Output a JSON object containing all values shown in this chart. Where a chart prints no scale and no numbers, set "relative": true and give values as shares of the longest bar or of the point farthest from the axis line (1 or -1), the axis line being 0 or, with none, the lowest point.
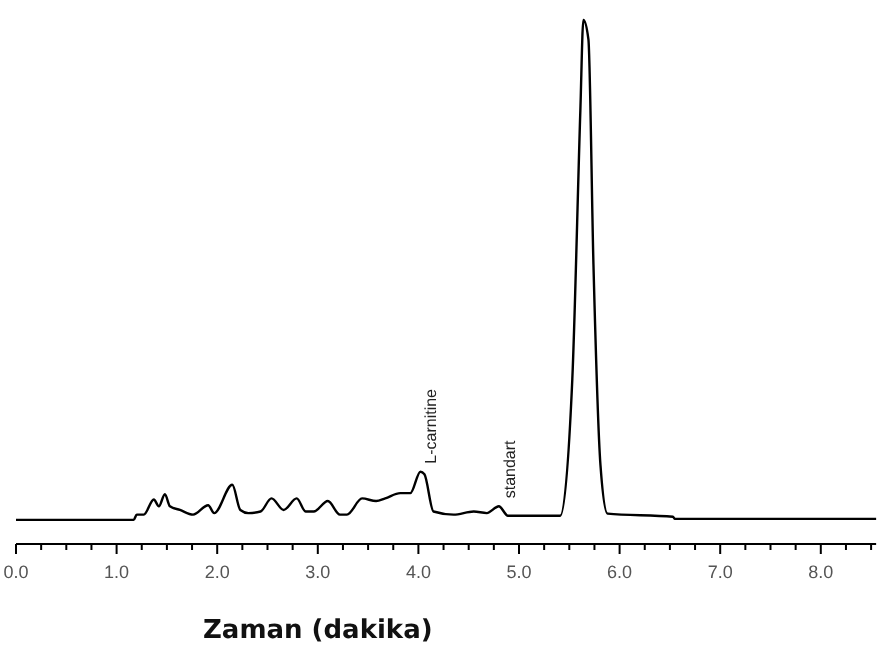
{
  "chart_data": {
    "type": "line",
    "relative": true,
    "xlabel": "Zaman (dakika)",
    "xlim": [
      0,
      8.55
    ],
    "xticks": [
      {
        "value": 0,
        "label": "0.0"
      },
      {
        "value": 0.25,
        "label": null
      },
      {
        "value": 0.5,
        "label": null
      },
      {
        "value": 0.75,
        "label": null
      },
      {
        "value": 1,
        "label": "1.0"
      },
      {
        "value": 1.25,
        "label": null
      },
      {
        "value": 1.5,
        "label": null
      },
      {
        "value": 1.75,
        "label": null
      },
      {
        "value": 2,
        "label": "2.0"
      },
      {
        "value": 2.25,
        "label": null
      },
      {
        "value": 2.5,
        "label": null
      },
      {
        "value": 2.75,
        "label": null
      },
      {
        "value": 3,
        "label": "3.0"
      },
      {
        "value": 3.25,
        "label": null
      },
      {
        "value": 3.5,
        "label": null
      },
      {
        "value": 3.75,
        "label": null
      },
      {
        "value": 4,
        "label": "4.0"
      },
      {
        "value": 4.25,
        "label": null
      },
      {
        "value": 4.5,
        "label": null
      },
      {
        "value": 4.75,
        "label": null
      },
      {
        "value": 5,
        "label": "5.0"
      },
      {
        "value": 5.25,
        "label": null
      },
      {
        "value": 5.5,
        "label": null
      },
      {
        "value": 5.75,
        "label": null
      },
      {
        "value": 6,
        "label": "6.0"
      },
      {
        "value": 6.25,
        "label": null
      },
      {
        "value": 6.5,
        "label": null
      },
      {
        "value": 6.75,
        "label": null
      },
      {
        "value": 7,
        "label": "7.0"
      },
      {
        "value": 7.25,
        "label": null
      },
      {
        "value": 7.5,
        "label": null
      },
      {
        "value": 7.75,
        "label": null
      },
      {
        "value": 8,
        "label": "8.0"
      },
      {
        "value": 8.25,
        "label": null
      },
      {
        "value": 8.5,
        "label": null
      }
    ],
    "x": [
      0,
      1.17,
      1.2,
      1.27,
      1.37,
      1.42,
      1.48,
      1.53,
      1.63,
      1.76,
      1.91,
      1.97,
      2.15,
      2.23,
      2.31,
      2.43,
      2.54,
      2.66,
      2.79,
      2.88,
      2.96,
      3.1,
      3.22,
      3.29,
      3.44,
      3.58,
      3.67,
      3.82,
      3.92,
      4.02,
      4.06,
      4.15,
      4.35,
      4.55,
      4.68,
      4.8,
      4.89,
      5.41,
      5.53,
      5.61,
      5.64,
      5.69,
      5.74,
      5.81,
      5.88,
      6.53,
      6.55,
      8.55
    ],
    "series": [
      {
        "color": "#000000",
        "values": [
          0.046,
          0.046,
          0.056,
          0.056,
          0.085,
          0.072,
          0.095,
          0.072,
          0.065,
          0.056,
          0.074,
          0.059,
          0.113,
          0.065,
          0.059,
          0.062,
          0.087,
          0.065,
          0.087,
          0.062,
          0.062,
          0.082,
          0.056,
          0.056,
          0.087,
          0.082,
          0.087,
          0.097,
          0.097,
          0.138,
          0.133,
          0.062,
          0.056,
          0.062,
          0.059,
          0.072,
          0.054,
          0.054,
          0.315,
          0.828,
          1,
          0.963,
          0.534,
          0.15,
          0.058,
          0.052,
          0.048,
          0.048
        ]
      }
    ],
    "annotations": [
      {
        "text": "L-carnitine",
        "x": 4.02,
        "y": 0.138
      },
      {
        "text": "standart",
        "x": 4.8,
        "y": 0.072
      }
    ],
    "grid": false,
    "marker": "none",
    "line_style": "solid"
  }
}
